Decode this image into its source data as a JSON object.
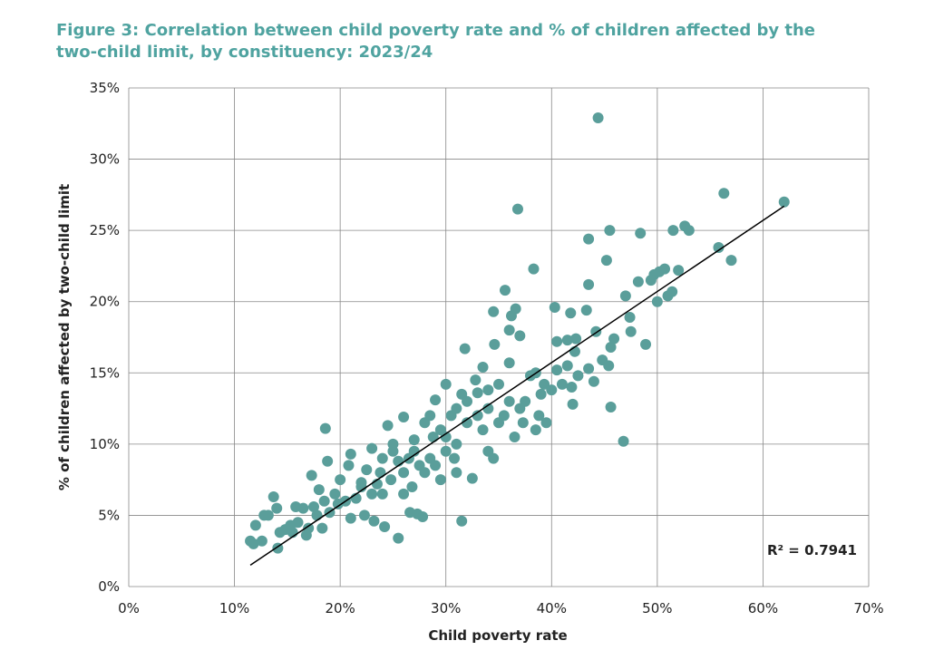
{
  "chart_data": {
    "type": "scatter",
    "title": "Figure 3: Correlation between child poverty rate and % of children affected by the two-child limit, by constituency: 2023/24",
    "xlabel": "Child poverty rate",
    "ylabel": "% of children affected by two-child limit",
    "annotation": "R² = 0.7941",
    "color": "#5a9e9a",
    "grid": true,
    "xlim": [
      0,
      70
    ],
    "ylim": [
      0,
      35
    ],
    "xticks": [
      {
        "value": 0,
        "label": "0%"
      },
      {
        "value": 10,
        "label": "10%"
      },
      {
        "value": 20,
        "label": "20%"
      },
      {
        "value": 30,
        "label": "30%"
      },
      {
        "value": 40,
        "label": "40%"
      },
      {
        "value": 50,
        "label": "50%"
      },
      {
        "value": 60,
        "label": "60%"
      },
      {
        "value": 70,
        "label": "70%"
      }
    ],
    "yticks": [
      {
        "value": 0,
        "label": "0%"
      },
      {
        "value": 5,
        "label": "5%"
      },
      {
        "value": 10,
        "label": "10%"
      },
      {
        "value": 15,
        "label": "15%"
      },
      {
        "value": 20,
        "label": "20%"
      },
      {
        "value": 25,
        "label": "25%"
      },
      {
        "value": 30,
        "label": "30%"
      },
      {
        "value": 35,
        "label": "35%"
      }
    ],
    "x": [
      44.4,
      36.8,
      56.3,
      62,
      52.6,
      51.5,
      53,
      45.5,
      48.4,
      43.5,
      55.8,
      57,
      45.2,
      38.3,
      50.7,
      52,
      50.2,
      49.7,
      49.4,
      48.2,
      43.5,
      51.4,
      35.6,
      51,
      47,
      50,
      40.3,
      41.8,
      43.3,
      47.4,
      44.2,
      47.5,
      45.9,
      48.9,
      45.6,
      40.5,
      41.5,
      42.3,
      42.2,
      44.8,
      45.4,
      43.5,
      42.5,
      44,
      41.9,
      42,
      45.6,
      46.8,
      39.3,
      18.6,
      31.5,
      25.5,
      11.5,
      12,
      13.7,
      14.1,
      12.6,
      11.8,
      13.2,
      14.3,
      15.3,
      15.8,
      17,
      17.5,
      18.3,
      19,
      17.3,
      18.8,
      19.8,
      20,
      21,
      22,
      22.3,
      23.2,
      24,
      24.2,
      23,
      25,
      24.5,
      26,
      26.5,
      27.3,
      27.8,
      26.6,
      28,
      28.5,
      29,
      30,
      30.5,
      31,
      31.8,
      32.5,
      32,
      33,
      33.5,
      34,
      34.6,
      35,
      35.5,
      34.5,
      34,
      33.5,
      36,
      36.2,
      36.6,
      37,
      37.5,
      38,
      37.3,
      36,
      38.5,
      38.8,
      39,
      39.5,
      38.5,
      40.5,
      41,
      41.5,
      40,
      34.5,
      36.5,
      37,
      32.8,
      31.5,
      30.8,
      29.5,
      28.8,
      27.5,
      26.8,
      26,
      25.5,
      24.8,
      23.8,
      23,
      22.5,
      21.5,
      21,
      20.5,
      19.5,
      18.5,
      18,
      17.8,
      16.5,
      16,
      15.5,
      14.8,
      16.8,
      14,
      12.8,
      27,
      28,
      29.5,
      30,
      31,
      32,
      33,
      34,
      35,
      36,
      26,
      27,
      28.5,
      29,
      30,
      31,
      24,
      25,
      22,
      23.5,
      20.8
    ],
    "values": [
      32.9,
      26.5,
      27.6,
      27,
      25.3,
      25,
      25,
      25,
      24.8,
      24.4,
      23.8,
      22.9,
      22.9,
      22.3,
      22.3,
      22.2,
      22.1,
      21.9,
      21.5,
      21.4,
      21.2,
      20.7,
      20.8,
      20.4,
      20.4,
      20,
      19.6,
      19.2,
      19.4,
      18.9,
      17.9,
      17.9,
      17.4,
      17,
      16.8,
      17.2,
      17.3,
      17.4,
      16.5,
      15.9,
      15.5,
      15.3,
      14.8,
      14.4,
      14,
      12.8,
      12.6,
      10.2,
      14.2,
      11.1,
      4.6,
      3.4,
      3.2,
      4.3,
      6.3,
      2.7,
      3.2,
      3,
      5,
      3.8,
      4.3,
      5.6,
      4.1,
      5.6,
      4.1,
      5.2,
      7.8,
      8.8,
      5.8,
      7.5,
      9.3,
      7.3,
      5,
      4.6,
      6.5,
      4.2,
      9.7,
      10,
      11.3,
      11.9,
      9,
      5.1,
      4.9,
      5.2,
      8,
      12,
      13.1,
      14.2,
      12,
      10,
      16.7,
      7.6,
      11.5,
      13.6,
      15.4,
      12.5,
      17,
      14.2,
      12,
      9,
      9.5,
      11,
      18,
      19,
      19.5,
      17.6,
      13,
      14.8,
      11.5,
      15.7,
      15,
      12,
      13.5,
      11.5,
      11,
      15.2,
      14.2,
      15.5,
      13.8,
      19.3,
      10.5,
      12.5,
      14.5,
      13.5,
      9,
      7.5,
      10.5,
      8.5,
      7,
      6.5,
      8.8,
      7.5,
      8,
      6.5,
      8.2,
      6.2,
      4.8,
      6,
      6.5,
      6,
      6.8,
      5,
      5.5,
      4.5,
      3.8,
      4,
      3.6,
      5.5,
      5,
      10.3,
      11.5,
      11,
      10.5,
      12.5,
      13,
      12,
      13.8,
      11.5,
      13,
      8,
      9.5,
      9,
      8.5,
      9.5,
      8,
      9,
      9.5,
      7,
      7.2,
      8.5
    ],
    "trendline": {
      "x": [
        11.5,
        62
      ],
      "values": [
        1.5,
        26.7
      ]
    }
  }
}
